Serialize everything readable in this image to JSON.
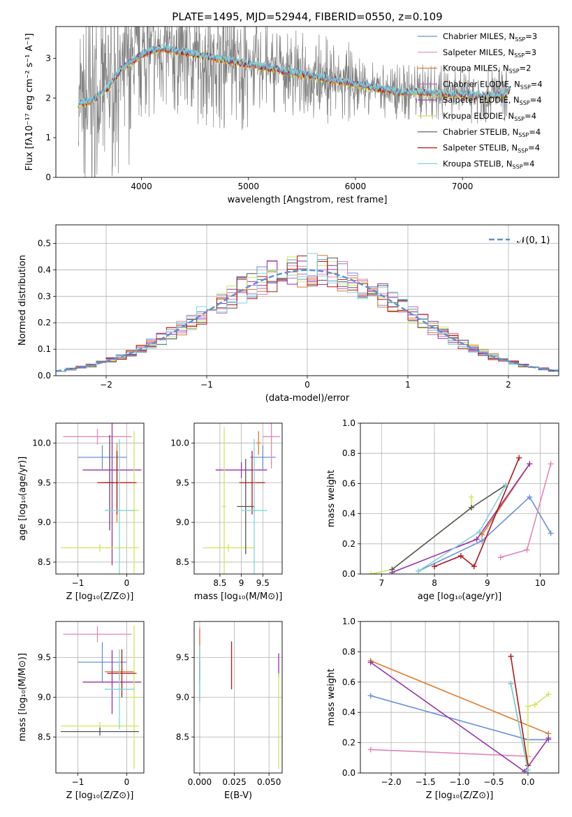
{
  "title": "PLATE=1495, MJD=52944, FIBERID=0550, z=0.109",
  "colors": {
    "Chabrier MILES": "#6b8fd8",
    "Salpeter MILES": "#e585b5",
    "Kroupa MILES": "#e07a2a",
    "Chabrier ELODIE": "#c06cc0",
    "Salpeter ELODIE": "#9a2faa",
    "Kroupa ELODIE": "#cce85a",
    "Chabrier STELIB": "#555555",
    "Salpeter STELIB": "#b01818",
    "Kroupa STELIB": "#7fd6d6",
    "data": "#808080",
    "normal": "#5b8fd6"
  },
  "legend": [
    {
      "label": "Chabrier MILES, N",
      "sub": "SSP",
      "suffix": "=3",
      "color_key": "Chabrier MILES"
    },
    {
      "label": "Salpeter MILES, N",
      "sub": "SSP",
      "suffix": "=3",
      "color_key": "Salpeter MILES"
    },
    {
      "label": "Kroupa MILES, N",
      "sub": "SSP",
      "suffix": "=2",
      "color_key": "Kroupa MILES"
    },
    {
      "label": "Chabrier ELODIE, N",
      "sub": "SSP",
      "suffix": "=4",
      "color_key": "Chabrier ELODIE"
    },
    {
      "label": "Salpeter ELODIE, N",
      "sub": "SSP",
      "suffix": "=4",
      "color_key": "Salpeter ELODIE"
    },
    {
      "label": "Kroupa ELODIE, N",
      "sub": "SSP",
      "suffix": "=4",
      "color_key": "Kroupa ELODIE"
    },
    {
      "label": "Chabrier STELIB, N",
      "sub": "SSP",
      "suffix": "=4",
      "color_key": "Chabrier STELIB"
    },
    {
      "label": "Salpeter STELIB, N",
      "sub": "SSP",
      "suffix": "=4",
      "color_key": "Salpeter STELIB"
    },
    {
      "label": "Kroupa STELIB, N",
      "sub": "SSP",
      "suffix": "=4",
      "color_key": "Kroupa STELIB"
    }
  ],
  "chart_data": [
    {
      "id": "spectrum",
      "type": "line",
      "xlabel": "wavelength [Angstrom, rest frame]",
      "ylabel": "Flux [fλ10⁻¹⁷ erg cm⁻² s⁻¹ A⁻¹]",
      "xlim": [
        3200,
        7900
      ],
      "ylim": [
        0,
        3.8
      ],
      "xticks": [
        4000,
        5000,
        6000,
        7000
      ],
      "yticks": [
        0,
        1,
        2,
        3
      ],
      "model_continuum": {
        "x": [
          3400,
          3500,
          3600,
          3700,
          3800,
          3900,
          4000,
          4100,
          4200,
          4300,
          4400,
          4500,
          4600,
          4800,
          5000,
          5200,
          5400,
          5600,
          5800,
          6000,
          6200,
          6400,
          6600,
          6800,
          7000,
          7200,
          7400,
          7450
        ],
        "y": [
          1.85,
          1.9,
          2.05,
          2.3,
          2.7,
          2.9,
          3.1,
          3.2,
          3.25,
          3.2,
          3.15,
          3.1,
          3.05,
          2.95,
          2.85,
          2.75,
          2.65,
          2.55,
          2.45,
          2.35,
          2.25,
          2.15,
          2.15,
          2.1,
          2.1,
          2.05,
          2.1,
          2.2
        ]
      }
    },
    {
      "id": "residuals",
      "type": "histogram",
      "xlabel": "(data-model)/error",
      "ylabel": "Normed distribution",
      "xlim": [
        -2.5,
        2.5
      ],
      "ylim": [
        0,
        0.57
      ],
      "xticks": [
        -2,
        -1,
        0,
        1,
        2
      ],
      "yticks": [
        0.0,
        0.1,
        0.2,
        0.3,
        0.4,
        0.5
      ],
      "legend": "𝒩(0, 1)",
      "bin_width": 0.1
    },
    {
      "id": "age_vs_Z",
      "type": "errorbar",
      "xlabel": "Z [log₁₀(Z/Z⊙)]",
      "ylabel": "age  [log₁₀(age/yr)]",
      "xlim": [
        -1.45,
        0.35
      ],
      "ylim": [
        8.35,
        10.25
      ],
      "xticks": [
        -1,
        0
      ],
      "yticks": [
        8.5,
        9.0,
        9.5,
        10.0
      ],
      "points": [
        {
          "model": "Chabrier MILES",
          "x": -0.5,
          "y": 9.82,
          "xerr": 0.5,
          "yerr": 0.15
        },
        {
          "model": "Salpeter MILES",
          "x": -0.6,
          "y": 10.08,
          "xerr": 0.7,
          "yerr": 0.1
        },
        {
          "model": "Kroupa MILES",
          "x": -0.2,
          "y": 9.5,
          "xerr": 0.3,
          "yerr": 0.5
        },
        {
          "model": "Salpeter ELODIE",
          "x": -0.3,
          "y": 9.66,
          "xerr": 0.6,
          "yerr": 1.2
        },
        {
          "model": "Kroupa ELODIE",
          "x": 0.15,
          "y": 9.15,
          "xerr": 0.1,
          "yerr": 1.0
        },
        {
          "model": "Kroupa ELODIE",
          "x": -0.55,
          "y": 8.68,
          "xerr": 0.8,
          "yerr": 0.05
        },
        {
          "model": "Chabrier STELIB",
          "x": -0.35,
          "y": 9.5,
          "xerr": 0.1,
          "yerr": 0.6
        },
        {
          "model": "Salpeter STELIB",
          "x": -0.2,
          "y": 9.5,
          "xerr": 0.4,
          "yerr": 0.4
        },
        {
          "model": "Kroupa STELIB",
          "x": -0.15,
          "y": 9.15,
          "xerr": 0.3,
          "yerr": 0.9
        }
      ]
    },
    {
      "id": "age_vs_mass",
      "type": "errorbar",
      "xlabel": "mass [log₁₀(M/M⊙)]",
      "ylabel": "",
      "xlim": [
        7.9,
        9.95
      ],
      "ylim": [
        8.35,
        10.25
      ],
      "xticks": [
        8.5,
        9.0,
        9.5
      ],
      "yticks": [
        8.5,
        9.0,
        9.5,
        10.0
      ],
      "points": [
        {
          "model": "Chabrier MILES",
          "x": 9.5,
          "y": 9.82,
          "xerr": 0.3,
          "yerr": 0.15
        },
        {
          "model": "Salpeter MILES",
          "x": 9.7,
          "y": 10.08,
          "xerr": 0.2,
          "yerr": 0.4
        },
        {
          "model": "Kroupa MILES",
          "x": 9.4,
          "y": 10.0,
          "xerr": 0.05,
          "yerr": 0.15
        },
        {
          "model": "Salpeter ELODIE",
          "x": 9.0,
          "y": 9.66,
          "xerr": 0.6,
          "yerr": 0.1
        },
        {
          "model": "Kroupa ELODIE",
          "x": 8.6,
          "y": 9.2,
          "xerr": 0.05,
          "yerr": 1.0
        },
        {
          "model": "Kroupa ELODIE",
          "x": 8.7,
          "y": 8.68,
          "xerr": 0.6,
          "yerr": 0.05
        },
        {
          "model": "Chabrier STELIB",
          "x": 9.1,
          "y": 9.2,
          "xerr": 0.2,
          "yerr": 0.6
        },
        {
          "model": "Salpeter STELIB",
          "x": 9.25,
          "y": 9.5,
          "xerr": 0.3,
          "yerr": 0.4
        },
        {
          "model": "Kroupa STELIB",
          "x": 9.3,
          "y": 9.15,
          "xerr": 0.3,
          "yerr": 0.9
        }
      ]
    },
    {
      "id": "weight_vs_age",
      "type": "line",
      "xlabel": "age  [log₁₀(age/yr)]",
      "ylabel": "mass weight",
      "xlim": [
        6.6,
        10.35
      ],
      "ylim": [
        0,
        1.0
      ],
      "xticks": [
        7,
        8,
        9,
        10
      ],
      "yticks": [
        0.0,
        0.2,
        0.4,
        0.6,
        0.8,
        1.0
      ],
      "series": [
        {
          "model": "Chabrier MILES",
          "x": [
            7.7,
            8.9,
            9.8,
            10.2
          ],
          "y": [
            0.02,
            0.22,
            0.51,
            0.27
          ]
        },
        {
          "model": "Salpeter MILES",
          "x": [
            9.25,
            9.75,
            10.2
          ],
          "y": [
            0.11,
            0.16,
            0.73
          ]
        },
        {
          "model": "Kroupa MILES",
          "x": [
            8.9,
            9.8
          ],
          "y": [
            0.26,
            0.73
          ]
        },
        {
          "model": "Salpeter ELODIE",
          "x": [
            7.2,
            8.8,
            9.8
          ],
          "y": [
            0.01,
            0.23,
            0.73
          ]
        },
        {
          "model": "Kroupa ELODIE",
          "x": [
            6.8,
            7.2,
            8.7,
            8.7
          ],
          "y": [
            0.0,
            0.03,
            0.44,
            0.51
          ]
        },
        {
          "model": "Chabrier STELIB",
          "x": [
            7.2,
            8.7,
            9.35
          ],
          "y": [
            0.03,
            0.44,
            0.59
          ]
        },
        {
          "model": "Salpeter STELIB",
          "x": [
            8.0,
            8.5,
            8.75,
            9.6
          ],
          "y": [
            0.05,
            0.12,
            0.05,
            0.77
          ]
        },
        {
          "model": "Kroupa STELIB",
          "x": [
            7.7,
            8.85,
            9.35
          ],
          "y": [
            0.02,
            0.28,
            0.59
          ]
        }
      ]
    },
    {
      "id": "mass_vs_Z",
      "type": "errorbar",
      "xlabel": "Z [log₁₀(Z/Z⊙)]",
      "ylabel": "mass [log₁₀(M/M⊙)]",
      "xlim": [
        -1.45,
        0.35
      ],
      "ylim": [
        8.05,
        9.95
      ],
      "xticks": [
        -1,
        0
      ],
      "yticks": [
        8.5,
        9.0,
        9.5
      ],
      "points": [
        {
          "model": "Chabrier MILES",
          "x": -0.5,
          "y": 9.44,
          "xerr": 0.5,
          "yerr": 0.25
        },
        {
          "model": "Salpeter MILES",
          "x": -0.6,
          "y": 9.79,
          "xerr": 0.7,
          "yerr": 0.1
        },
        {
          "model": "Kroupa MILES",
          "x": -0.15,
          "y": 9.32,
          "xerr": 0.3,
          "yerr": 0.1
        },
        {
          "model": "Salpeter ELODIE",
          "x": -0.3,
          "y": 9.19,
          "xerr": 0.6,
          "yerr": 0.4
        },
        {
          "model": "Kroupa ELODIE",
          "x": 0.15,
          "y": 9.0,
          "xerr": 0.1,
          "yerr": 0.9
        },
        {
          "model": "Kroupa ELODIE",
          "x": -0.55,
          "y": 8.64,
          "xerr": 0.8,
          "yerr": 0.05
        },
        {
          "model": "Chabrier STELIB",
          "x": -0.55,
          "y": 8.57,
          "xerr": 0.8,
          "yerr": 0.05
        },
        {
          "model": "Salpeter STELIB",
          "x": -0.1,
          "y": 9.3,
          "xerr": 0.3,
          "yerr": 0.3
        },
        {
          "model": "Kroupa STELIB",
          "x": -0.15,
          "y": 9.1,
          "xerr": 0.3,
          "yerr": 0.5
        }
      ]
    },
    {
      "id": "mass_vs_ebv",
      "type": "errorbar",
      "xlabel": "E(B-V)",
      "ylabel": "",
      "xlim": [
        -0.004,
        0.0595
      ],
      "ylim": [
        8.05,
        9.95
      ],
      "xticks": [
        0.0,
        0.025,
        0.05
      ],
      "xticklabels": [
        "0.000",
        "0.025",
        "0.050"
      ],
      "yticks": [
        8.5,
        9.0,
        9.5
      ],
      "points": [
        {
          "model": "Chabrier MILES",
          "x": 0.0,
          "y": 9.44,
          "xerr": 0,
          "yerr": 0.25
        },
        {
          "model": "Salpeter MILES",
          "x": 0.0,
          "y": 9.79,
          "xerr": 0,
          "yerr": 0.1
        },
        {
          "model": "Kroupa MILES",
          "x": 0.0,
          "y": 9.55,
          "xerr": 0,
          "yerr": 0.3
        },
        {
          "model": "Salpeter ELODIE",
          "x": 0.057,
          "y": 9.4,
          "xerr": 0,
          "yerr": 0.15
        },
        {
          "model": "Kroupa ELODIE",
          "x": 0.057,
          "y": 8.7,
          "xerr": 0,
          "yerr": 0.6
        },
        {
          "model": "Chabrier STELIB",
          "x": 0.0,
          "y": 9.2,
          "xerr": 0,
          "yerr": 0.25
        },
        {
          "model": "Salpeter STELIB",
          "x": 0.023,
          "y": 9.4,
          "xerr": 0,
          "yerr": 0.3
        },
        {
          "model": "Kroupa STELIB",
          "x": 0.0,
          "y": 9.3,
          "xerr": 0,
          "yerr": 0.35
        }
      ]
    },
    {
      "id": "weight_vs_Z",
      "type": "line",
      "xlabel": "Z [log₁₀(Z/Z⊙)]",
      "ylabel": "mass weight",
      "xlim": [
        -2.45,
        0.45
      ],
      "ylim": [
        0,
        1.0
      ],
      "xticks": [
        -2.0,
        -1.5,
        -1.0,
        -0.5,
        0.0
      ],
      "xticklabels": [
        "−2.0",
        "−1.5",
        "−1.0",
        "−0.5",
        "0.0"
      ],
      "yticks": [
        0.0,
        0.2,
        0.4,
        0.6,
        0.8,
        1.0
      ],
      "series": [
        {
          "model": "Chabrier MILES",
          "x": [
            -2.3,
            0.0,
            0.3
          ],
          "y": [
            0.51,
            0.22,
            0.22
          ]
        },
        {
          "model": "Salpeter MILES",
          "x": [
            -2.3,
            0.0
          ],
          "y": [
            0.155,
            0.11
          ]
        },
        {
          "model": "Kroupa MILES",
          "x": [
            -2.3,
            0.3
          ],
          "y": [
            0.74,
            0.26
          ]
        },
        {
          "model": "Salpeter ELODIE",
          "x": [
            -2.3,
            -0.05,
            0.3
          ],
          "y": [
            0.73,
            0.01,
            0.23
          ]
        },
        {
          "model": "Kroupa ELODIE",
          "x": [
            0.0,
            0.0,
            0.1,
            0.3
          ],
          "y": [
            0.0,
            0.44,
            0.45,
            0.52
          ]
        },
        {
          "model": "Chabrier STELIB",
          "x": [
            -0.25,
            0.0
          ],
          "y": [
            0.59,
            0.02
          ]
        },
        {
          "model": "Salpeter STELIB",
          "x": [
            -0.25,
            0.0
          ],
          "y": [
            0.77,
            0.05
          ]
        },
        {
          "model": "Kroupa STELIB",
          "x": [
            -0.25,
            0.0
          ],
          "y": [
            0.59,
            0.02
          ]
        }
      ]
    }
  ]
}
